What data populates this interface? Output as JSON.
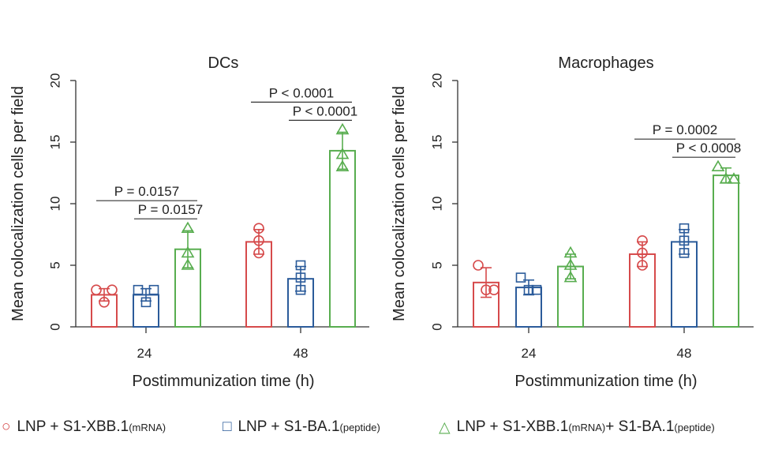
{
  "chart_data": [
    {
      "type": "bar",
      "title": "DCs",
      "xlabel": "Postimmunization time (h)",
      "ylabel": "Mean colocalization cells per field",
      "ylim": [
        0,
        20
      ],
      "yticks": [
        0,
        5,
        10,
        15,
        20
      ],
      "categories": [
        "24",
        "48"
      ],
      "series": [
        {
          "name": "LNP + S1-XBB.1 (mRNA)",
          "color": "#d64a4b",
          "marker": "circle",
          "values": [
            2.6,
            6.9
          ],
          "errors": [
            0.5,
            1.0
          ],
          "points": [
            [
              3.0,
              2.0,
              3.0
            ],
            [
              8.0,
              7.0,
              6.0
            ]
          ]
        },
        {
          "name": "LNP + S1-BA.1 (peptide)",
          "color": "#2b5b9a",
          "marker": "square",
          "values": [
            2.6,
            3.9
          ],
          "errors": [
            0.5,
            1.0
          ],
          "points": [
            [
              3.0,
              2.0,
              3.0
            ],
            [
              5.0,
              3.0,
              4.0
            ]
          ]
        },
        {
          "name": "LNP + S1-XBB.1 (mRNA) + S1-BA.1 (peptide)",
          "color": "#58ad4f",
          "marker": "triangle",
          "values": [
            6.3,
            14.3
          ],
          "errors": [
            1.5,
            1.5
          ],
          "points": [
            [
              8.0,
              6.0,
              5.0
            ],
            [
              16.0,
              14.0,
              13.0
            ]
          ]
        }
      ],
      "annotations": [
        {
          "text": "P = 0.0157",
          "time": "24",
          "from": 0,
          "to": 2
        },
        {
          "text": "P = 0.0157",
          "time": "24",
          "from": 1,
          "to": 2
        },
        {
          "text": "P < 0.0001",
          "time": "48",
          "from": 0,
          "to": 2
        },
        {
          "text": "P < 0.0001",
          "time": "48",
          "from": 1,
          "to": 2
        }
      ]
    },
    {
      "type": "bar",
      "title": "Macrophages",
      "xlabel": "Postimmunization time (h)",
      "ylabel": "Mean colocalization cells per field",
      "ylim": [
        0,
        20
      ],
      "yticks": [
        0,
        5,
        10,
        15,
        20
      ],
      "categories": [
        "24",
        "48"
      ],
      "series": [
        {
          "name": "LNP + S1-XBB.1 (mRNA)",
          "color": "#d64a4b",
          "marker": "circle",
          "values": [
            3.6,
            5.9
          ],
          "errors": [
            1.2,
            1.0
          ],
          "points": [
            [
              5.0,
              3.0,
              3.0
            ],
            [
              7.0,
              6.0,
              5.0
            ]
          ]
        },
        {
          "name": "LNP + S1-BA.1 (peptide)",
          "color": "#2b5b9a",
          "marker": "square",
          "values": [
            3.2,
            6.9
          ],
          "errors": [
            0.6,
            1.0
          ],
          "points": [
            [
              4.0,
              3.0,
              3.0
            ],
            [
              8.0,
              7.0,
              6.0
            ]
          ]
        },
        {
          "name": "LNP + S1-XBB.1 (mRNA) + S1-BA.1 (peptide)",
          "color": "#58ad4f",
          "marker": "triangle",
          "values": [
            4.9,
            12.3
          ],
          "errors": [
            1.0,
            0.6
          ],
          "points": [
            [
              6.0,
              5.0,
              4.0
            ],
            [
              13.0,
              12.0,
              12.0
            ]
          ]
        }
      ],
      "annotations": [
        {
          "text": "P = 0.0002",
          "time": "48",
          "from": 0,
          "to": 2
        },
        {
          "text": "P < 0.0008",
          "time": "48",
          "from": 1,
          "to": 2
        }
      ]
    }
  ],
  "legend": [
    {
      "symbol": "○",
      "color": "#d64a4b",
      "label": "LNP + S1-XBB.1",
      "sub": "(mRNA)",
      "label2": "",
      "sub2": ""
    },
    {
      "symbol": "□",
      "color": "#2b5b9a",
      "label": "LNP + S1-BA.1",
      "sub": "(peptide)",
      "label2": "",
      "sub2": ""
    },
    {
      "symbol": "△",
      "color": "#58ad4f",
      "label": "LNP + S1-XBB.1",
      "sub": "(mRNA)",
      "label2": " + S1-BA.1",
      "sub2": "(peptide)"
    }
  ]
}
